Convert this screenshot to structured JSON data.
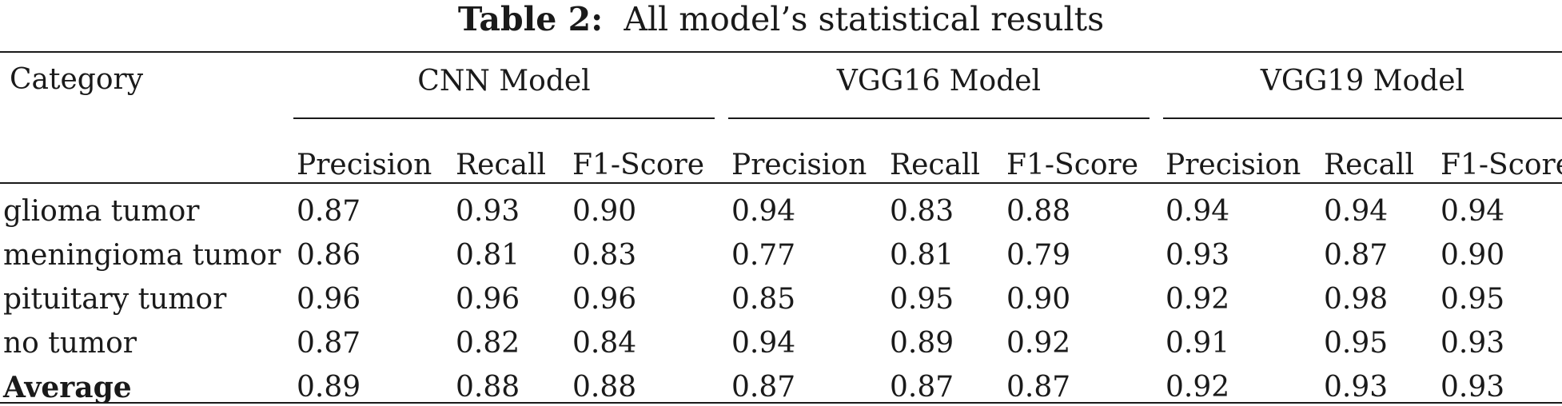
{
  "caption": {
    "label": "Table 2:",
    "text": "All model’s statistical results"
  },
  "header": {
    "category": "Category",
    "groups": [
      "CNN Model",
      "VGG16 Model",
      "VGG19 Model"
    ],
    "metrics": [
      "Precision",
      "Recall",
      "F1-Score"
    ]
  },
  "rows": [
    {
      "label": "glioma tumor",
      "bold": false,
      "values": [
        "0.87",
        "0.93",
        "0.90",
        "0.94",
        "0.83",
        "0.88",
        "0.94",
        "0.94",
        "0.94"
      ]
    },
    {
      "label": "meningioma tumor",
      "bold": false,
      "values": [
        "0.86",
        "0.81",
        "0.83",
        "0.77",
        "0.81",
        "0.79",
        "0.93",
        "0.87",
        "0.90"
      ]
    },
    {
      "label": "pituitary tumor",
      "bold": false,
      "values": [
        "0.96",
        "0.96",
        "0.96",
        "0.85",
        "0.95",
        "0.90",
        "0.92",
        "0.98",
        "0.95"
      ]
    },
    {
      "label": "no tumor",
      "bold": false,
      "values": [
        "0.87",
        "0.82",
        "0.84",
        "0.94",
        "0.89",
        "0.92",
        "0.91",
        "0.95",
        "0.93"
      ]
    },
    {
      "label": "Average",
      "bold": true,
      "values": [
        "0.89",
        "0.88",
        "0.88",
        "0.87",
        "0.87",
        "0.87",
        "0.92",
        "0.93",
        "0.93"
      ]
    }
  ]
}
